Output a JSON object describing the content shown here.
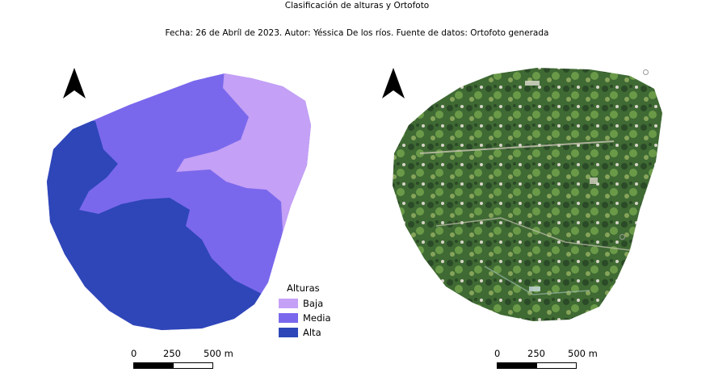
{
  "title": "Clasificación de alturas y Ortofoto",
  "subtitle": "Fecha: 26 de Abríl de 2023. Autor: Yéssica De los ríos. Fuente de datos: Ortofoto generada",
  "legend": {
    "title": "Alturas",
    "items": [
      {
        "label": "Baja",
        "color": "#c4a0f6"
      },
      {
        "label": "Media",
        "color": "#7a68ec"
      },
      {
        "label": "Alta",
        "color": "#2e46b8"
      }
    ]
  },
  "scalebar": {
    "labels": [
      "0",
      "250",
      "500 m"
    ]
  },
  "colors": {
    "ortho_dark": "#2f4d2a",
    "ortho_mid": "#4f7a3b",
    "ortho_light": "#86a45a"
  }
}
